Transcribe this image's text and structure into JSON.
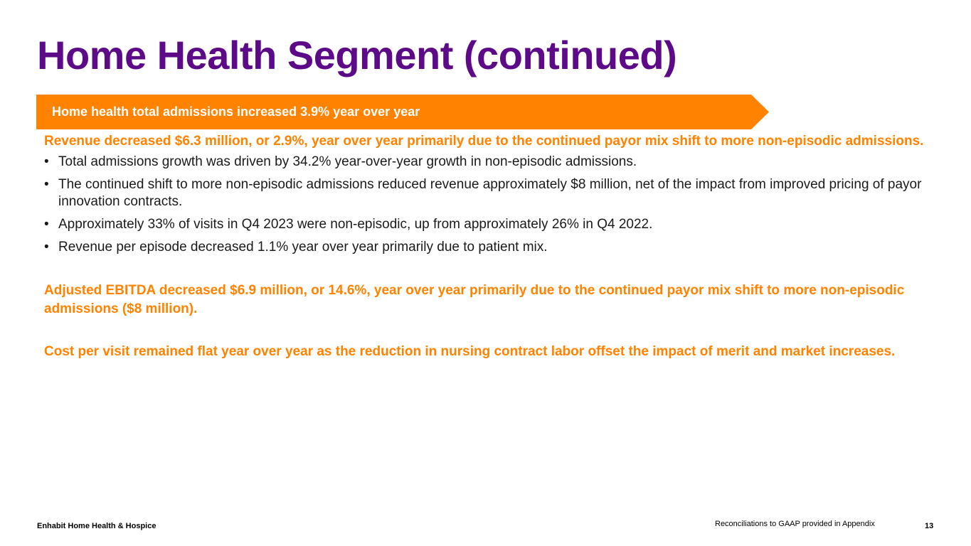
{
  "slide": {
    "title": "Home Health Segment (continued)",
    "banner_text": "Home health total admissions increased 3.9% year over year",
    "brand_color": "#5c0a87",
    "accent_color": "#ff8200"
  },
  "sections": {
    "revenue": {
      "headline": "Revenue decreased $6.3 million, or 2.9%, year over year primarily due to the continued payor mix shift to more non-episodic admissions.",
      "bullets": [
        "Total admissions growth was driven by 34.2% year-over-year growth in non-episodic admissions.",
        "The continued shift to more non-episodic admissions reduced revenue approximately $8 million, net of the impact from improved pricing of payor innovation contracts.",
        "Approximately 33% of visits in Q4 2023 were non-episodic, up from approximately 26% in Q4 2022.",
        "Revenue per episode decreased 1.1% year over year primarily due to patient mix."
      ]
    },
    "ebitda": {
      "headline": "Adjusted EBITDA decreased $6.9 million, or 14.6%, year over year primarily due to the continued payor mix shift to more non-episodic admissions ($8 million)."
    },
    "cost": {
      "headline": "Cost per visit remained flat year over year as the reduction in nursing contract labor offset the impact of merit and market increases."
    }
  },
  "bullet_glyph": "•",
  "footer": {
    "company": "Enhabit Home Health & Hospice",
    "note": "Reconciliations to GAAP provided in Appendix",
    "page_number": "13"
  }
}
